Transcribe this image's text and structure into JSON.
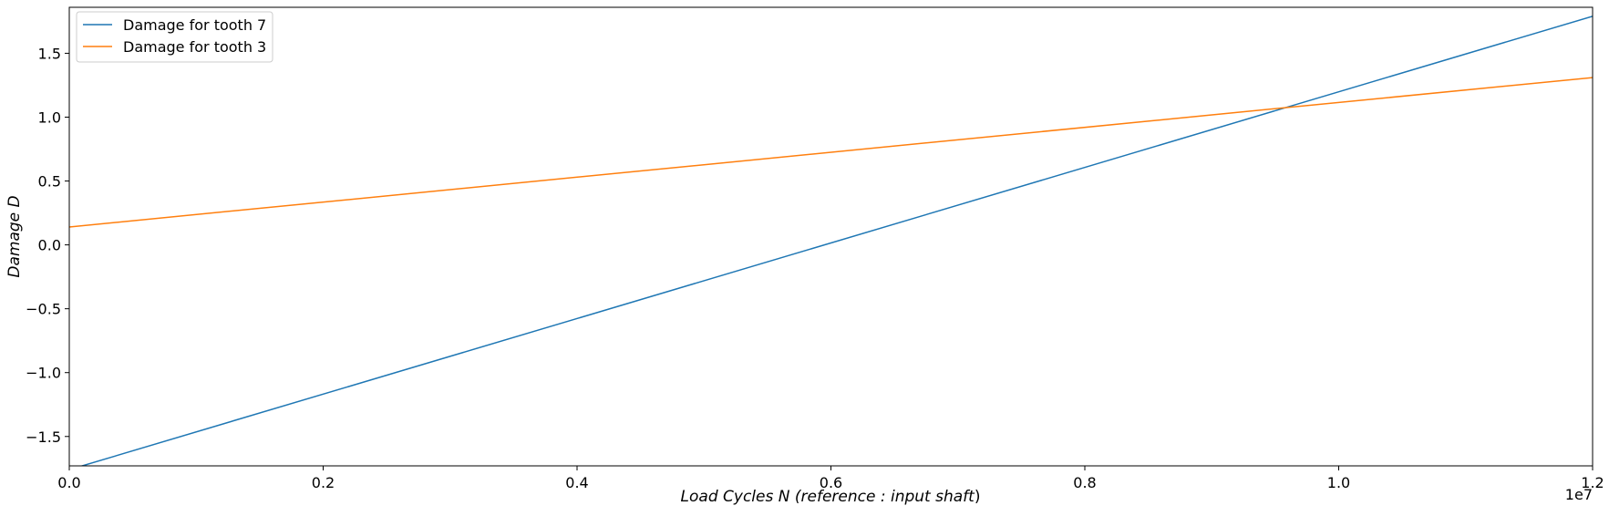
{
  "chart_data": {
    "type": "line",
    "title": "",
    "xlabel": "Load Cycles N (reference :  input shaft)",
    "xlabel_parts": {
      "prefix": "Load Cycles N (",
      "middle": "reference :  input shaft",
      "suffix": ")"
    },
    "ylabel": "Damage D",
    "xlim": [
      0,
      12000000
    ],
    "ylim": [
      -1.73,
      1.86
    ],
    "x_offset_label": "1e7",
    "x_ticks": [
      {
        "value": 0,
        "label": "0.0"
      },
      {
        "value": 2000000,
        "label": "0.2"
      },
      {
        "value": 4000000,
        "label": "0.4"
      },
      {
        "value": 6000000,
        "label": "0.6"
      },
      {
        "value": 8000000,
        "label": "0.8"
      },
      {
        "value": 10000000,
        "label": "1.0"
      },
      {
        "value": 12000000,
        "label": "1.2"
      }
    ],
    "y_ticks": [
      {
        "value": -1.5,
        "label": "−1.5"
      },
      {
        "value": -1.0,
        "label": "−1.0"
      },
      {
        "value": -0.5,
        "label": "−0.5"
      },
      {
        "value": 0.0,
        "label": "0.0"
      },
      {
        "value": 0.5,
        "label": "0.5"
      },
      {
        "value": 1.0,
        "label": "1.0"
      },
      {
        "value": 1.5,
        "label": "1.5"
      }
    ],
    "grid": false,
    "legend_position": "top-left",
    "series": [
      {
        "name": "Damage for tooth 7",
        "color": "#1f77b4",
        "x": [
          0,
          12000000
        ],
        "y": [
          -1.76,
          1.79
        ]
      },
      {
        "name": "Damage for tooth 3",
        "color": "#ff7f0e",
        "x": [
          0,
          12000000
        ],
        "y": [
          0.14,
          1.31
        ]
      }
    ]
  }
}
